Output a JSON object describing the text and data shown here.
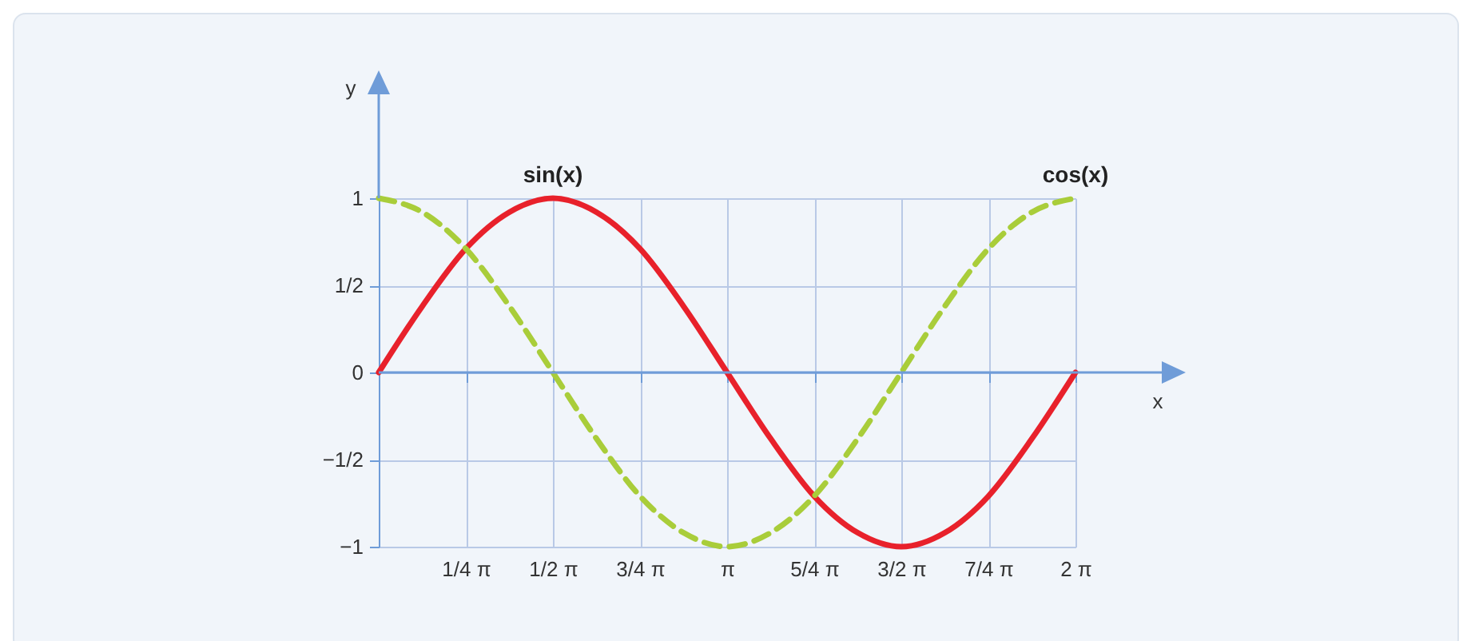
{
  "chart_data": {
    "type": "line",
    "xlabel": "x",
    "ylabel": "y",
    "categories": [
      null,
      null,
      "1/4 π",
      null,
      "1/2 π",
      null,
      "3/4 π",
      null,
      "π",
      null,
      "5/4 π",
      null,
      "3/2 π",
      null,
      "7/4 π",
      null,
      "2 π"
    ],
    "series": [
      {
        "name": "sin(x)",
        "color": "#e8212b",
        "line_style": "solid",
        "values": [
          0,
          0.38,
          0.71,
          0.92,
          1,
          0.92,
          0.71,
          0.38,
          0,
          -0.38,
          -0.71,
          -0.92,
          -1,
          -0.92,
          -0.71,
          -0.38,
          0
        ]
      },
      {
        "name": "cos(x)",
        "color": "#a9cd3a",
        "line_style": "dashed",
        "values": [
          1,
          0.92,
          0.71,
          0.38,
          0,
          -0.38,
          -0.71,
          -0.92,
          -1,
          -0.92,
          -0.71,
          -0.38,
          0,
          0.38,
          0.71,
          0.92,
          1
        ]
      }
    ],
    "ylim": [
      -1,
      1
    ],
    "ref_lines": [
      {
        "axis": "y",
        "value": 0,
        "color": "#6f9cd8"
      }
    ],
    "yticks": [
      {
        "value": -1,
        "label": "−1"
      },
      {
        "value": -0.5,
        "label": "−1/2"
      },
      0,
      {
        "value": 0.5,
        "label": "1/2"
      },
      1
    ],
    "grid": true,
    "marker": "none",
    "legend": false
  }
}
